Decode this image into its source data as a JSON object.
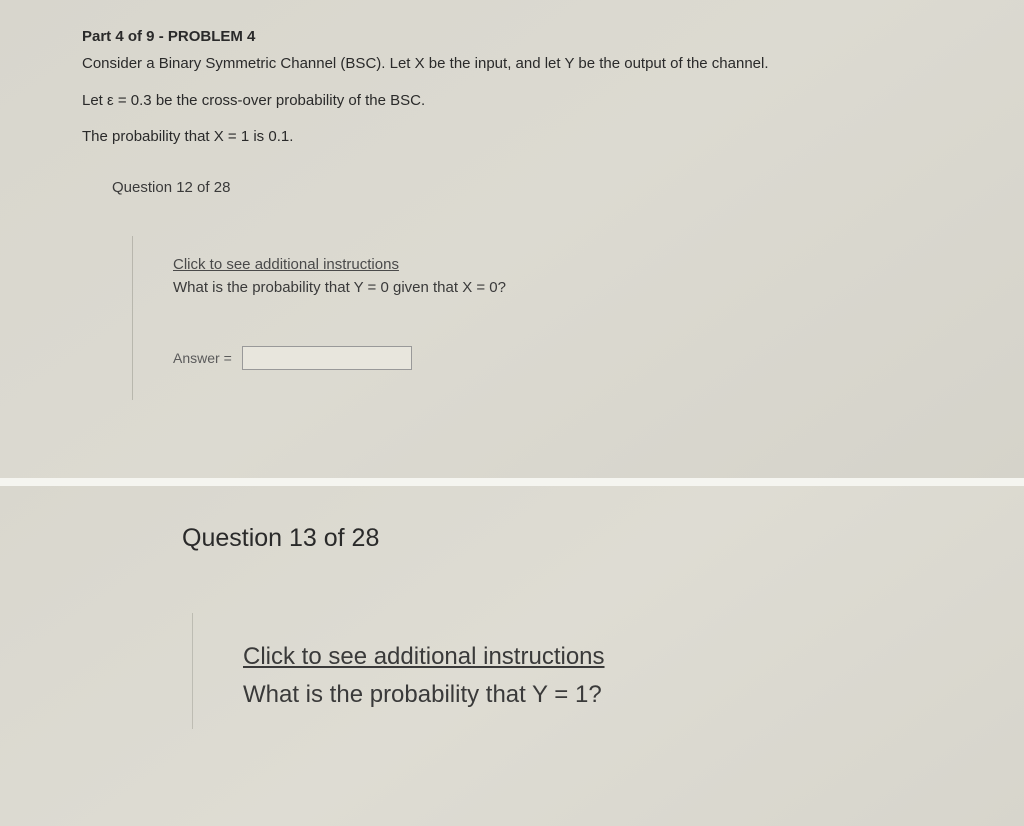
{
  "colors": {
    "panel_bg": "#d8d6cd",
    "text_primary": "#2a2a2a",
    "text_secondary": "#3a3a3a",
    "text_muted": "#5a5a5a",
    "input_border": "#999999",
    "input_bg": "#e8e6dd",
    "divider": "rgba(120,120,110,0.35)"
  },
  "typography": {
    "body_fontsize": 15,
    "heading_fontsize": 15,
    "big_fontsize": 25,
    "font_family": "Arial"
  },
  "problem": {
    "part_header": "Part 4 of 9 - PROBLEM 4",
    "prompt_line1": "Consider a Binary Symmetric Channel (BSC). Let X be the input, and let Y be the output of the channel.",
    "prompt_line2": "Let ε = 0.3 be the cross-over probability of the BSC.",
    "prompt_line3": "The probability that X = 1 is 0.1."
  },
  "q12": {
    "number_label": "Question 12 of 28",
    "instruction_link": "Click to see additional instructions",
    "question_text": "What is the probability that Y = 0 given that X = 0?",
    "answer_label": "Answer =",
    "answer_value": ""
  },
  "q13": {
    "number_label": "Question 13 of 28",
    "instruction_link": "Click to see additional instructions",
    "question_text": "What is the probability that Y = 1?"
  }
}
